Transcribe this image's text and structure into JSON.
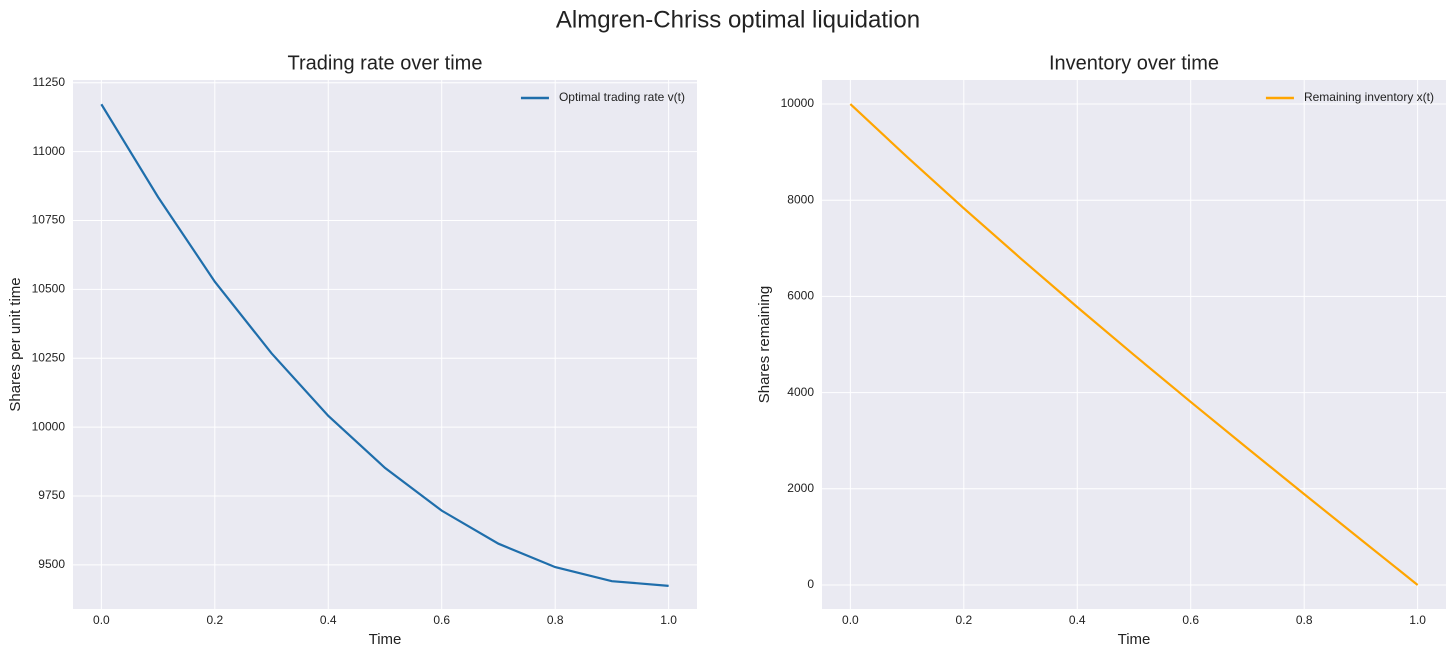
{
  "title": "Almgren-Chriss optimal liquidation",
  "chart_data": [
    {
      "type": "line",
      "title": "Trading rate over time",
      "xlabel": "Time",
      "ylabel": "Shares per unit time",
      "x": [
        0,
        0.1,
        0.2,
        0.3,
        0.4,
        0.5,
        0.6,
        0.7,
        0.8,
        0.9,
        1.0
      ],
      "series": [
        {
          "name": "Optimal trading rate v(t)",
          "color": "#1f6eab",
          "values": [
            11172,
            10835,
            10528,
            10268,
            10041,
            9852,
            9697,
            9577,
            9492,
            9441,
            9424
          ]
        }
      ],
      "xlim": [
        -0.05,
        1.05
      ],
      "ylim": [
        9340,
        11260
      ],
      "xticks": [
        {
          "value": 0,
          "label": "0.0"
        },
        0.2,
        0.4,
        0.6,
        0.8,
        {
          "value": 1,
          "label": "1.0"
        }
      ],
      "yticks": [
        9500,
        9750,
        10000,
        10250,
        10500,
        10750,
        11000,
        11250
      ],
      "grid": true,
      "legend": "upper right"
    },
    {
      "type": "line",
      "title": "Inventory over time",
      "xlabel": "Time",
      "ylabel": "Shares remaining",
      "x": [
        0,
        0.1,
        0.2,
        0.3,
        0.4,
        0.5,
        0.6,
        0.7,
        0.8,
        0.9,
        1.0
      ],
      "series": [
        {
          "name": "Remaining inventory x(t)",
          "color": "#ffa500",
          "values": [
            10000,
            8900,
            7832,
            6793,
            5777,
            4783,
            3806,
            2843,
            1889,
            943,
            0
          ]
        }
      ],
      "xlim": [
        -0.05,
        1.05
      ],
      "ylim": [
        -500,
        10500
      ],
      "xticks": [
        {
          "value": 0,
          "label": "0.0"
        },
        0.2,
        0.4,
        0.6,
        0.8,
        {
          "value": 1,
          "label": "1.0"
        }
      ],
      "yticks": [
        0,
        2000,
        4000,
        6000,
        8000,
        10000
      ],
      "grid": true,
      "legend": "upper right"
    }
  ]
}
